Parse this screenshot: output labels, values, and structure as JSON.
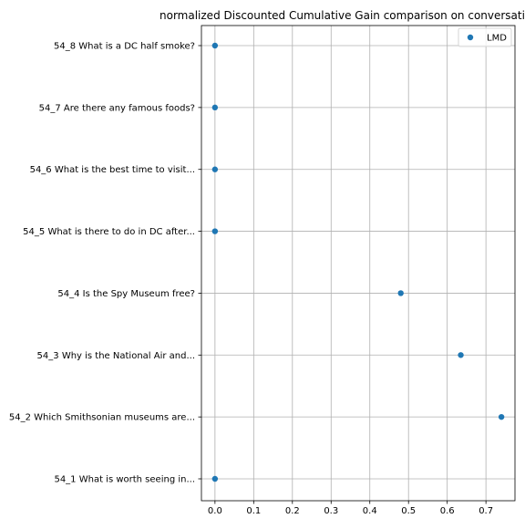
{
  "chart_data": {
    "type": "scatter",
    "title": "normalized Discounted Cumulative Gain comparison on conversation",
    "xlabel": "",
    "ylabel": "",
    "xlim": [
      -0.035,
      0.775
    ],
    "x_ticks": [
      0.0,
      0.1,
      0.2,
      0.3,
      0.4,
      0.5,
      0.6,
      0.7
    ],
    "x_tick_labels": [
      "0.0",
      "0.1",
      "0.2",
      "0.3",
      "0.4",
      "0.5",
      "0.6",
      "0.7"
    ],
    "categories": [
      "54_1 What is worth seeing in...",
      "54_2 Which Smithsonian museums are...",
      "54_3 Why is the National Air and...",
      "54_4 Is the Spy Museum free?",
      "54_5 What is there to do in DC after...",
      "54_6 What is the best time to visit...",
      "54_7 Are there any famous foods?",
      "54_8 What is a DC half smoke?"
    ],
    "series": [
      {
        "name": "LMD",
        "color": "#1f77b4",
        "values": [
          0.0,
          0.74,
          0.635,
          0.48,
          0.0,
          0.0,
          0.0,
          0.0
        ]
      }
    ],
    "grid": true,
    "legend_position": "top-right"
  }
}
